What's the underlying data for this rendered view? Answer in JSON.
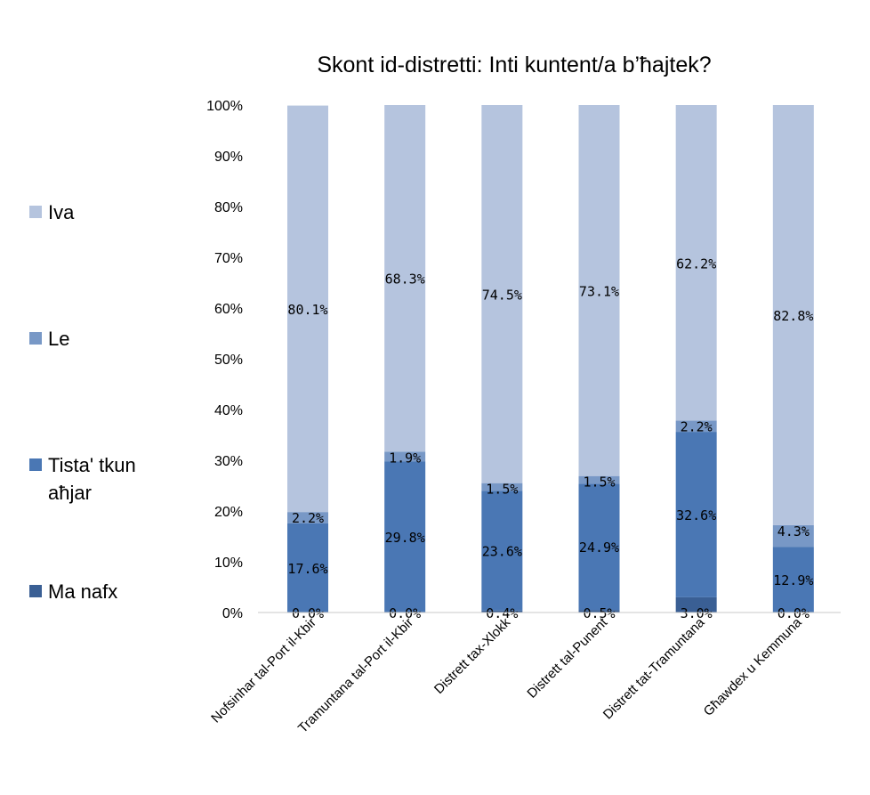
{
  "chart_data": {
    "type": "bar",
    "stacked": true,
    "title": "Skont id-distretti: Inti kuntent/a b’ħajtek?",
    "xlabel": "",
    "ylabel": "",
    "ylim": [
      0,
      100
    ],
    "yticks": [
      "0%",
      "10%",
      "20%",
      "30%",
      "40%",
      "50%",
      "60%",
      "70%",
      "80%",
      "90%",
      "100%"
    ],
    "categories": [
      "Nofsinhar tal-Port il-Kbir",
      "Tramuntana tal-Port il-Kbir",
      "Distrett tax-Xlokk",
      "Distrett tal-Punent",
      "Distrett tat-Tramuntana",
      "Għawdex u Kemmuna"
    ],
    "series": [
      {
        "name": "Ma nafx",
        "color": "#3a5f94",
        "values": [
          0.0,
          0.0,
          0.4,
          0.5,
          3.0,
          0.0
        ],
        "labels": [
          "0.0%",
          "0.0%",
          "0.4%",
          "0.5%",
          "3.0%",
          "0.0%"
        ]
      },
      {
        "name": "Tista' tkun aħjar",
        "color": "#4a77b4",
        "values": [
          17.6,
          29.8,
          23.6,
          24.9,
          32.6,
          12.9
        ],
        "labels": [
          "17.6%",
          "29.8%",
          "23.6%",
          "24.9%",
          "32.6%",
          "12.9%"
        ]
      },
      {
        "name": "Le",
        "color": "#7898c6",
        "values": [
          2.2,
          1.9,
          1.5,
          1.5,
          2.2,
          4.3
        ],
        "labels": [
          "2.2%",
          "1.9%",
          "1.5%",
          "1.5%",
          "2.2%",
          "4.3%"
        ]
      },
      {
        "name": "Iva",
        "color": "#b5c4de",
        "values": [
          80.1,
          68.3,
          74.5,
          73.1,
          62.2,
          82.8
        ],
        "labels": [
          "80.1%",
          "68.3%",
          "74.5%",
          "73.1%",
          "62.2%",
          "82.8%"
        ]
      }
    ],
    "legend": {
      "placement": "left",
      "items": [
        {
          "series": "Iva",
          "lines": [
            "Iva"
          ]
        },
        {
          "series": "Le",
          "lines": [
            "Le"
          ]
        },
        {
          "series": "Tista' tkun aħjar",
          "lines": [
            "Tista' tkun",
            "aħjar"
          ]
        },
        {
          "series": "Ma nafx",
          "lines": [
            "Ma nafx"
          ]
        }
      ]
    }
  }
}
